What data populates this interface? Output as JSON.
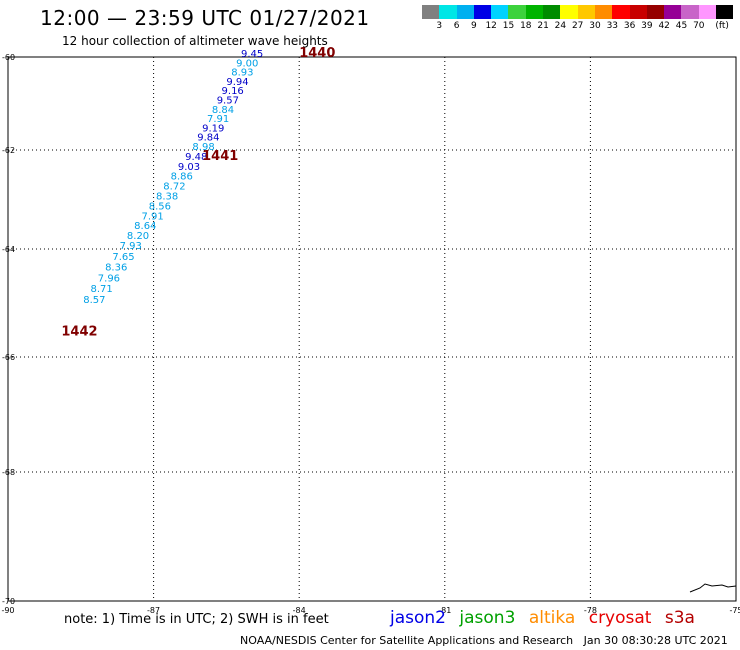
{
  "header": {
    "title": "12:00 — 23:59 UTC 01/27/2021",
    "subtitle": "12 hour collection of altimeter wave heights"
  },
  "legend": {
    "colors": [
      "#808080",
      "#00e6e6",
      "#00b0f0",
      "#0000e6",
      "#00d2ff",
      "#3cd23c",
      "#00b400",
      "#008c00",
      "#ffff00",
      "#ffc800",
      "#ff8c00",
      "#ff0000",
      "#c80000",
      "#960000",
      "#960096",
      "#c864c8",
      "#ff96ff",
      "#000000"
    ],
    "labels": [
      "3",
      "6",
      "9",
      "12",
      "15",
      "18",
      "21",
      "24",
      "27",
      "30",
      "33",
      "36",
      "39",
      "42",
      "45",
      "70",
      "(ft)"
    ]
  },
  "chart_data": {
    "type": "scatter",
    "xlim": [
      -90,
      -75
    ],
    "ylim": [
      -70,
      -60
    ],
    "x_ticks": [
      "-90",
      "-87",
      "-84",
      "-81",
      "-78",
      "-75"
    ],
    "y_ticks": [
      "-60",
      "-62",
      "-64",
      "-66",
      "-68",
      "-70"
    ],
    "grid": true,
    "orbits": [
      {
        "id": "1440",
        "lon": -84,
        "lat": -60
      },
      {
        "id": "1441",
        "lon": -86,
        "lat": -62.2
      },
      {
        "id": "1442",
        "lon": -88.9,
        "lat": -65.6
      }
    ],
    "points": [
      {
        "lon": -85.2,
        "lat": -60.0,
        "swh": "9.45",
        "color": "#0000c8"
      },
      {
        "lon": -85.3,
        "lat": -60.2,
        "swh": "9.00",
        "color": "#00a0e6"
      },
      {
        "lon": -85.4,
        "lat": -60.4,
        "swh": "8.93",
        "color": "#00a0e6"
      },
      {
        "lon": -85.5,
        "lat": -60.6,
        "swh": "9.94",
        "color": "#0000c8"
      },
      {
        "lon": -85.6,
        "lat": -60.8,
        "swh": "9.16",
        "color": "#0000c8"
      },
      {
        "lon": -85.7,
        "lat": -61.0,
        "swh": "9.57",
        "color": "#0000c8"
      },
      {
        "lon": -85.8,
        "lat": -61.2,
        "swh": "8.84",
        "color": "#00a0e6"
      },
      {
        "lon": -85.9,
        "lat": -61.4,
        "swh": "7.91",
        "color": "#00a0e6"
      },
      {
        "lon": -86.0,
        "lat": -61.6,
        "swh": "9.19",
        "color": "#0000c8"
      },
      {
        "lon": -86.1,
        "lat": -61.8,
        "swh": "9.84",
        "color": "#0000c8"
      },
      {
        "lon": -86.2,
        "lat": -62.0,
        "swh": "8.98",
        "color": "#00a0e6"
      },
      {
        "lon": -86.35,
        "lat": -62.2,
        "swh": "9.48",
        "color": "#0000c8"
      },
      {
        "lon": -86.5,
        "lat": -62.4,
        "swh": "9.03",
        "color": "#0000c8"
      },
      {
        "lon": -86.65,
        "lat": -62.6,
        "swh": "8.86",
        "color": "#00a0e6"
      },
      {
        "lon": -86.8,
        "lat": -62.8,
        "swh": "8.72",
        "color": "#00a0e6"
      },
      {
        "lon": -86.95,
        "lat": -63.0,
        "swh": "8.38",
        "color": "#00a0e6"
      },
      {
        "lon": -87.1,
        "lat": -63.2,
        "swh": "8.56",
        "color": "#00a0e6"
      },
      {
        "lon": -87.25,
        "lat": -63.4,
        "swh": "7.91",
        "color": "#00a0e6"
      },
      {
        "lon": -87.4,
        "lat": -63.6,
        "swh": "8.64",
        "color": "#00a0e6"
      },
      {
        "lon": -87.55,
        "lat": -63.8,
        "swh": "8.20",
        "color": "#00a0e6"
      },
      {
        "lon": -87.7,
        "lat": -64.0,
        "swh": "7.93",
        "color": "#00a0e6"
      },
      {
        "lon": -87.85,
        "lat": -64.2,
        "swh": "7.65",
        "color": "#00a0e6"
      },
      {
        "lon": -88.0,
        "lat": -64.4,
        "swh": "8.36",
        "color": "#00a0e6"
      },
      {
        "lon": -88.15,
        "lat": -64.6,
        "swh": "7.96",
        "color": "#00a0e6"
      },
      {
        "lon": -88.3,
        "lat": -64.8,
        "swh": "8.71",
        "color": "#00a0e6"
      },
      {
        "lon": -88.45,
        "lat": -65.0,
        "swh": "8.57",
        "color": "#00a0e6"
      }
    ]
  },
  "footer": {
    "note": "note: 1) Time is in UTC; 2) SWH is in feet",
    "missions": [
      {
        "name": "jason2",
        "color": "#0000e6"
      },
      {
        "name": "jason3",
        "color": "#00a000"
      },
      {
        "name": "altika",
        "color": "#ff8c00"
      },
      {
        "name": "cryosat",
        "color": "#e60000"
      },
      {
        "name": "s3a",
        "color": "#b40000"
      }
    ],
    "credit": "NOAA/NESDIS Center for Satellite Applications and Research",
    "timestamp": "Jan 30 08:30:28 UTC 2021"
  }
}
